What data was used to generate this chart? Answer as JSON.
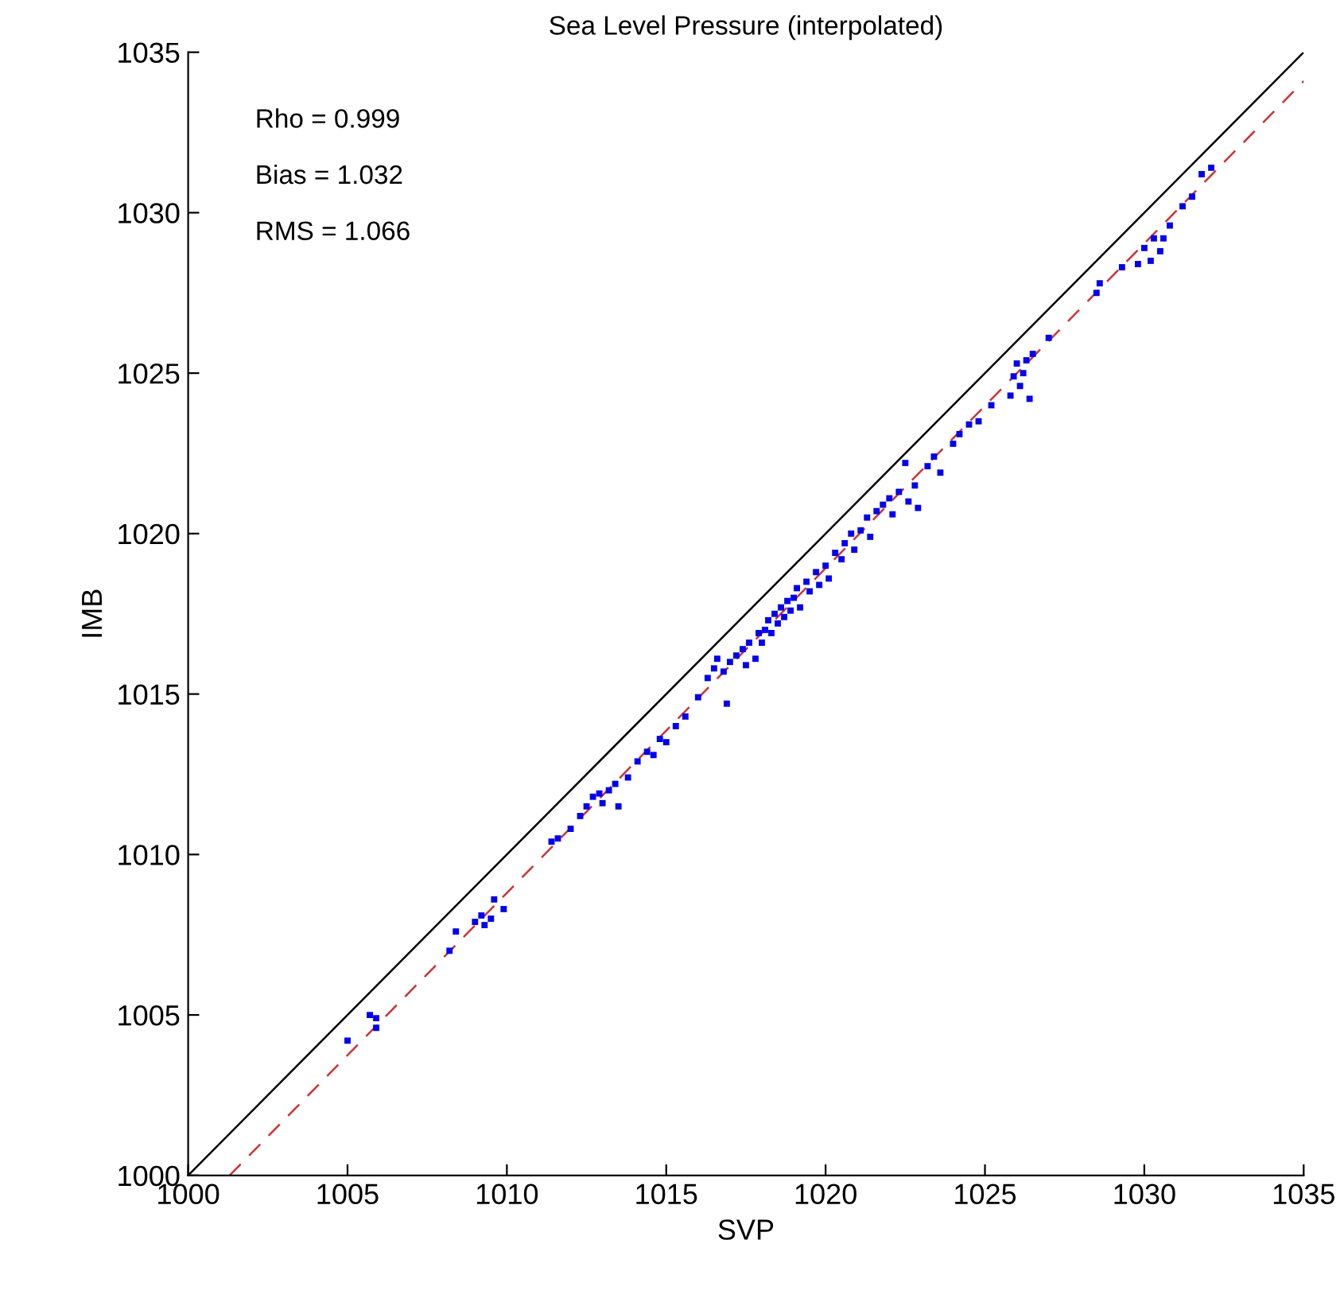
{
  "chart_data": {
    "type": "scatter",
    "title": "Sea Level Pressure (interpolated)",
    "xlabel": "SVP",
    "ylabel": "IMB",
    "annotations": [
      "Rho = 0.999",
      "Bias = 1.032",
      "RMS = 1.066"
    ],
    "xlim": [
      1000,
      1035
    ],
    "ylim": [
      1000,
      1035
    ],
    "xticks": [
      1000,
      1005,
      1010,
      1015,
      1020,
      1025,
      1030,
      1035
    ],
    "yticks": [
      1000,
      1005,
      1010,
      1015,
      1020,
      1025,
      1030,
      1035
    ],
    "grid": false,
    "series": [
      {
        "type": "line",
        "color": "#000000",
        "marker": "none",
        "line_style": "solid",
        "x": [
          1000,
          1035
        ],
        "values": [
          1000,
          1035
        ]
      },
      {
        "type": "line",
        "color": "#cc3333",
        "marker": "none",
        "line_style": "dashed",
        "x": [
          1001.3,
          1035
        ],
        "values": [
          1000,
          1034.1
        ]
      },
      {
        "color": "#0000ee",
        "marker": "square",
        "x": [
          1005.0,
          1005.7,
          1005.9,
          1005.9,
          1008.2,
          1008.4,
          1009.0,
          1009.2,
          1009.3,
          1009.5,
          1009.6,
          1009.9,
          1011.4,
          1011.6,
          1012.0,
          1012.3,
          1012.5,
          1012.7,
          1012.9,
          1013.0,
          1013.2,
          1013.4,
          1013.5,
          1013.8,
          1014.1,
          1014.4,
          1014.6,
          1014.8,
          1015.0,
          1015.3,
          1015.6,
          1016.0,
          1016.3,
          1016.5,
          1016.6,
          1016.8,
          1016.9,
          1017.0,
          1017.2,
          1017.4,
          1017.5,
          1017.6,
          1017.8,
          1017.9,
          1018.0,
          1018.1,
          1018.2,
          1018.3,
          1018.4,
          1018.5,
          1018.6,
          1018.7,
          1018.8,
          1018.9,
          1019.0,
          1019.1,
          1019.2,
          1019.4,
          1019.5,
          1019.7,
          1019.8,
          1020.0,
          1020.1,
          1020.3,
          1020.5,
          1020.6,
          1020.8,
          1020.9,
          1021.1,
          1021.3,
          1021.4,
          1021.6,
          1021.8,
          1022.0,
          1022.1,
          1022.3,
          1022.5,
          1022.6,
          1022.8,
          1022.9,
          1023.2,
          1023.4,
          1023.6,
          1024.0,
          1024.2,
          1024.5,
          1024.8,
          1025.2,
          1025.8,
          1025.9,
          1026.0,
          1026.1,
          1026.2,
          1026.3,
          1026.4,
          1026.5,
          1027.0,
          1028.5,
          1028.6,
          1029.3,
          1029.8,
          1030.0,
          1030.2,
          1030.3,
          1030.5,
          1030.6,
          1030.8,
          1031.2,
          1031.5,
          1031.8,
          1032.1
        ],
        "values": [
          1004.2,
          1005.0,
          1004.9,
          1004.6,
          1007.0,
          1007.6,
          1007.9,
          1008.1,
          1007.8,
          1008.0,
          1008.6,
          1008.3,
          1010.4,
          1010.5,
          1010.8,
          1011.2,
          1011.5,
          1011.8,
          1011.9,
          1011.6,
          1012.0,
          1012.2,
          1011.5,
          1012.4,
          1012.9,
          1013.2,
          1013.1,
          1013.6,
          1013.5,
          1014.0,
          1014.3,
          1014.9,
          1015.5,
          1015.8,
          1016.1,
          1015.7,
          1014.7,
          1016.0,
          1016.2,
          1016.4,
          1015.9,
          1016.6,
          1016.1,
          1016.9,
          1016.6,
          1017.0,
          1017.3,
          1016.9,
          1017.5,
          1017.2,
          1017.7,
          1017.4,
          1017.9,
          1017.6,
          1018.0,
          1018.3,
          1017.7,
          1018.5,
          1018.2,
          1018.8,
          1018.4,
          1019.0,
          1018.6,
          1019.4,
          1019.2,
          1019.7,
          1020.0,
          1019.5,
          1020.1,
          1020.5,
          1019.9,
          1020.7,
          1020.9,
          1021.1,
          1020.6,
          1021.3,
          1022.2,
          1021.0,
          1021.5,
          1020.8,
          1022.1,
          1022.4,
          1021.9,
          1022.8,
          1023.1,
          1023.4,
          1023.5,
          1024.0,
          1024.3,
          1024.9,
          1025.3,
          1024.6,
          1025.0,
          1025.4,
          1024.2,
          1025.6,
          1026.1,
          1027.5,
          1027.8,
          1028.3,
          1028.4,
          1028.9,
          1028.5,
          1029.2,
          1028.8,
          1029.2,
          1029.6,
          1030.2,
          1030.5,
          1031.2,
          1031.4
        ]
      }
    ]
  }
}
